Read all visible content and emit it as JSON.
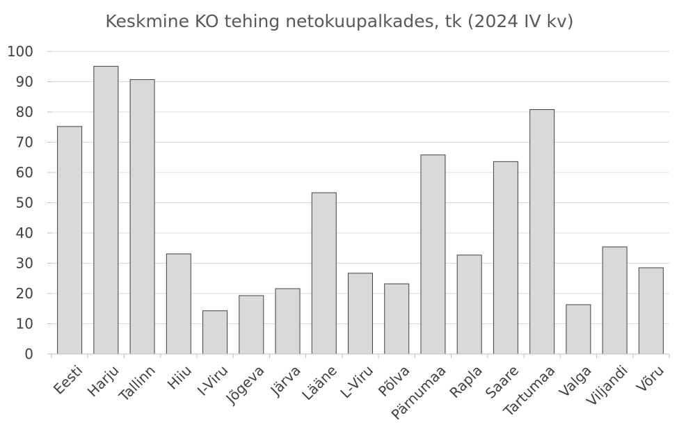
{
  "chart_data": {
    "type": "bar",
    "title": "Keskmine KO tehing netokuupalkades, tk (2024 IV kv)",
    "xlabel": "",
    "ylabel": "",
    "categories": [
      "Eesti",
      "Harju",
      "Tallinn",
      "Hiiu",
      "I-Viru",
      "Jõgeva",
      "Järva",
      "Lääne",
      "L-Viru",
      "Põlva",
      "Pärnumaa",
      "Rapla",
      "Saare",
      "Tartumaa",
      "Valga",
      "Viljandi",
      "Võru"
    ],
    "values": [
      75.2,
      95.1,
      90.7,
      33.1,
      14.3,
      19.3,
      21.6,
      53.3,
      26.7,
      23.2,
      65.8,
      32.7,
      63.6,
      80.8,
      16.3,
      35.4,
      28.5
    ],
    "ylim": [
      0,
      100
    ],
    "yticks": [
      0,
      10,
      20,
      30,
      40,
      50,
      60,
      70,
      80,
      90,
      100
    ],
    "grid": true,
    "legend": "none",
    "colors": {
      "bar_fill": "#d9d9d9",
      "bar_stroke": "#404040",
      "grid": "#d9d9d9",
      "text": "#404040",
      "title": "#595959"
    }
  }
}
